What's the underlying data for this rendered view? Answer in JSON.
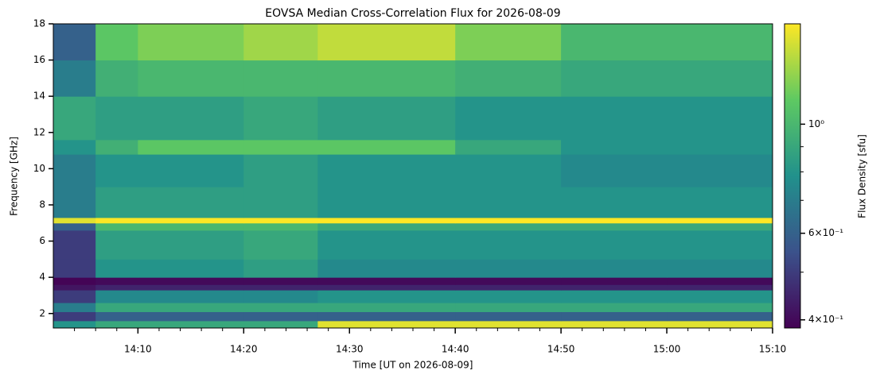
{
  "chart_data": {
    "type": "heatmap",
    "title": "EOVSA Median Cross-Correlation Flux for 2026-08-09",
    "x_label": "Time [UT on 2026-08-09]",
    "y_label": "Frequency [GHz]",
    "colorbar_label": "Flux Density [sfu]",
    "colormap": "viridis",
    "color_scale": "log",
    "x": [
      "14:02",
      "14:06",
      "14:10",
      "14:20",
      "14:27",
      "14:40",
      "14:50",
      "15:00",
      "15:10"
    ],
    "y": [
      1.2,
      1.6,
      2.1,
      2.6,
      3.3,
      3.6,
      4.0,
      5.0,
      6.6,
      7.0,
      7.3,
      9.0,
      10.8,
      11.6,
      14,
      16,
      18
    ],
    "z": [
      [
        0.8,
        0.9,
        0.9,
        0.9,
        1.5,
        1.5,
        1.5,
        1.5
      ],
      [
        0.5,
        0.6,
        0.6,
        0.6,
        0.6,
        0.6,
        0.6,
        0.6
      ],
      [
        0.7,
        0.9,
        0.9,
        0.9,
        0.9,
        0.9,
        0.9,
        0.9
      ],
      [
        0.5,
        0.75,
        0.75,
        0.75,
        0.8,
        0.8,
        0.8,
        0.8
      ],
      [
        0.42,
        0.45,
        0.45,
        0.45,
        0.45,
        0.45,
        0.45,
        0.45
      ],
      [
        0.39,
        0.4,
        0.4,
        0.4,
        0.4,
        0.4,
        0.4,
        0.4
      ],
      [
        0.5,
        0.8,
        0.8,
        0.85,
        0.75,
        0.75,
        0.75,
        0.75
      ],
      [
        0.5,
        0.85,
        0.85,
        0.9,
        0.8,
        0.8,
        0.8,
        0.8
      ],
      [
        0.6,
        1.0,
        1.0,
        1.0,
        0.9,
        0.9,
        0.9,
        0.9
      ],
      [
        1.5,
        1.6,
        1.6,
        1.6,
        1.6,
        1.6,
        1.6,
        1.6
      ],
      [
        0.7,
        0.85,
        0.85,
        0.85,
        0.8,
        0.8,
        0.8,
        0.8
      ],
      [
        0.7,
        0.8,
        0.8,
        0.85,
        0.8,
        0.8,
        0.75,
        0.75
      ],
      [
        0.8,
        0.95,
        1.1,
        1.1,
        1.1,
        0.9,
        0.8,
        0.8
      ],
      [
        0.9,
        0.85,
        0.85,
        0.9,
        0.85,
        0.8,
        0.8,
        0.8
      ],
      [
        0.7,
        0.95,
        1.0,
        1.0,
        1.0,
        0.95,
        0.9,
        0.9
      ],
      [
        0.6,
        1.1,
        1.2,
        1.3,
        1.4,
        1.2,
        1.0,
        1.0
      ]
    ],
    "xlim": [
      "14:02",
      "15:10"
    ],
    "ylim": [
      1.2,
      18
    ],
    "clim": [
      0.385,
      1.6
    ],
    "xticks": [
      "14:10",
      "14:20",
      "14:30",
      "14:40",
      "14:50",
      "15:00",
      "15:10"
    ],
    "xminorticks": [
      "14:04",
      "14:06",
      "14:08",
      "14:12",
      "14:14",
      "14:16",
      "14:18",
      "14:22",
      "14:24",
      "14:26",
      "14:28",
      "14:32",
      "14:34",
      "14:36",
      "14:38",
      "14:42",
      "14:44",
      "14:46",
      "14:48",
      "14:52",
      "14:54",
      "14:56",
      "14:58",
      "15:02",
      "15:04",
      "15:06",
      "15:08"
    ],
    "yticks": [
      2,
      4,
      6,
      8,
      10,
      12,
      14,
      16,
      18
    ],
    "cticks": [
      {
        "value": 0.4,
        "label": "4×10⁻¹"
      },
      {
        "value": 0.6,
        "label": "6×10⁻¹"
      },
      {
        "value": 1,
        "label": "10⁰"
      }
    ],
    "cminorticks": [
      0.5,
      0.7,
      0.8,
      0.9
    ]
  }
}
